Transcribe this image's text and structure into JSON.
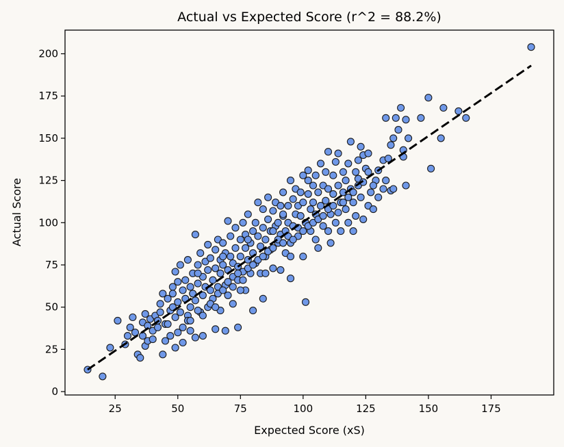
{
  "chart_data": {
    "type": "scatter",
    "title": "Actual vs Expected Score (r^2 = 88.2%)",
    "xlabel": "Expected Score (xS)",
    "ylabel": "Actual Score",
    "xlim": [
      5,
      200
    ],
    "ylim": [
      -2,
      214
    ],
    "xticks": [
      25,
      50,
      75,
      100,
      125,
      150,
      175
    ],
    "yticks": [
      0,
      25,
      50,
      75,
      100,
      125,
      150,
      175,
      200
    ],
    "grid": false,
    "legend": "none",
    "marker_color": "#6f98e8",
    "marker_edge_color": "#1a1a1a",
    "fit_line": {
      "style": "dashed",
      "color": "#000000",
      "x": [
        14,
        191
      ],
      "y": [
        13,
        193
      ]
    },
    "points": [
      [
        14,
        13
      ],
      [
        20,
        9
      ],
      [
        23,
        26
      ],
      [
        26,
        42
      ],
      [
        29,
        28
      ],
      [
        30,
        33
      ],
      [
        31,
        38
      ],
      [
        32,
        44
      ],
      [
        33,
        35
      ],
      [
        34,
        22
      ],
      [
        35,
        20
      ],
      [
        36,
        41
      ],
      [
        36,
        33
      ],
      [
        37,
        46
      ],
      [
        37,
        27
      ],
      [
        38,
        30
      ],
      [
        38,
        39
      ],
      [
        39,
        43
      ],
      [
        40,
        36
      ],
      [
        40,
        31
      ],
      [
        41,
        45
      ],
      [
        42,
        38
      ],
      [
        42,
        42
      ],
      [
        43,
        47
      ],
      [
        43,
        52
      ],
      [
        44,
        22
      ],
      [
        44,
        58
      ],
      [
        45,
        30
      ],
      [
        45,
        40
      ],
      [
        46,
        55
      ],
      [
        47,
        48
      ],
      [
        47,
        33
      ],
      [
        48,
        50
      ],
      [
        48,
        62
      ],
      [
        49,
        44
      ],
      [
        49,
        71
      ],
      [
        49,
        26
      ],
      [
        50,
        53
      ],
      [
        50,
        65
      ],
      [
        51,
        75
      ],
      [
        51,
        47
      ],
      [
        52,
        38
      ],
      [
        52,
        60
      ],
      [
        52,
        29
      ],
      [
        53,
        55
      ],
      [
        53,
        66
      ],
      [
        54,
        78
      ],
      [
        54,
        45
      ],
      [
        55,
        62
      ],
      [
        55,
        50
      ],
      [
        55,
        36
      ],
      [
        56,
        70
      ],
      [
        56,
        58
      ],
      [
        57,
        93
      ],
      [
        57,
        32
      ],
      [
        57,
        54
      ],
      [
        58,
        75
      ],
      [
        58,
        64
      ],
      [
        59,
        47
      ],
      [
        59,
        82
      ],
      [
        60,
        57
      ],
      [
        60,
        68
      ],
      [
        60,
        33
      ],
      [
        61,
        77
      ],
      [
        61,
        62
      ],
      [
        62,
        50
      ],
      [
        62,
        87
      ],
      [
        62,
        72
      ],
      [
        63,
        60
      ],
      [
        63,
        79
      ],
      [
        64,
        66
      ],
      [
        64,
        55
      ],
      [
        65,
        84
      ],
      [
        65,
        73
      ],
      [
        65,
        37
      ],
      [
        66,
        90
      ],
      [
        66,
        62
      ],
      [
        67,
        70
      ],
      [
        67,
        78
      ],
      [
        67,
        48
      ],
      [
        68,
        75
      ],
      [
        68,
        88
      ],
      [
        69,
        63
      ],
      [
        69,
        82
      ],
      [
        69,
        36
      ],
      [
        70,
        101
      ],
      [
        70,
        72
      ],
      [
        70,
        57
      ],
      [
        71,
        80
      ],
      [
        71,
        92
      ],
      [
        72,
        68
      ],
      [
        72,
        76
      ],
      [
        72,
        52
      ],
      [
        73,
        85
      ],
      [
        73,
        97
      ],
      [
        74,
        74
      ],
      [
        74,
        66
      ],
      [
        74,
        38
      ],
      [
        75,
        90
      ],
      [
        75,
        80
      ],
      [
        76,
        100
      ],
      [
        76,
        71
      ],
      [
        77,
        85
      ],
      [
        77,
        60
      ],
      [
        77,
        93
      ],
      [
        78,
        78
      ],
      [
        78,
        105
      ],
      [
        79,
        88
      ],
      [
        79,
        70
      ],
      [
        80,
        95
      ],
      [
        80,
        82
      ],
      [
        80,
        48
      ],
      [
        81,
        100
      ],
      [
        81,
        76
      ],
      [
        82,
        92
      ],
      [
        82,
        112
      ],
      [
        83,
        86
      ],
      [
        83,
        70
      ],
      [
        84,
        97
      ],
      [
        84,
        108
      ],
      [
        84,
        55
      ],
      [
        85,
        90
      ],
      [
        85,
        80
      ],
      [
        86,
        102
      ],
      [
        86,
        115
      ],
      [
        87,
        95
      ],
      [
        87,
        84
      ],
      [
        88,
        107
      ],
      [
        88,
        73
      ],
      [
        89,
        98
      ],
      [
        89,
        112
      ],
      [
        90,
        88
      ],
      [
        90,
        100
      ],
      [
        91,
        110
      ],
      [
        91,
        93
      ],
      [
        91,
        72
      ],
      [
        92,
        104
      ],
      [
        92,
        118
      ],
      [
        93,
        95
      ],
      [
        93,
        82
      ],
      [
        94,
        110
      ],
      [
        94,
        100
      ],
      [
        95,
        125
      ],
      [
        95,
        88
      ],
      [
        95,
        67
      ],
      [
        96,
        114
      ],
      [
        96,
        98
      ],
      [
        97,
        105
      ],
      [
        97,
        120
      ],
      [
        98,
        110
      ],
      [
        98,
        92
      ],
      [
        99,
        118
      ],
      [
        99,
        104
      ],
      [
        100,
        112
      ],
      [
        100,
        128
      ],
      [
        100,
        80
      ],
      [
        101,
        100
      ],
      [
        101,
        53
      ],
      [
        102,
        117
      ],
      [
        102,
        131
      ],
      [
        103,
        108
      ],
      [
        103,
        95
      ],
      [
        104,
        122
      ],
      [
        104,
        112
      ],
      [
        105,
        105
      ],
      [
        105,
        128
      ],
      [
        106,
        118
      ],
      [
        106,
        85
      ],
      [
        107,
        135
      ],
      [
        107,
        110
      ],
      [
        108,
        122
      ],
      [
        108,
        98
      ],
      [
        109,
        113
      ],
      [
        109,
        130
      ],
      [
        110,
        120
      ],
      [
        110,
        142
      ],
      [
        111,
        105
      ],
      [
        111,
        88
      ],
      [
        112,
        128
      ],
      [
        112,
        117
      ],
      [
        113,
        136
      ],
      [
        113,
        100
      ],
      [
        114,
        141
      ],
      [
        114,
        122
      ],
      [
        115,
        112
      ],
      [
        115,
        95
      ],
      [
        116,
        130
      ],
      [
        116,
        118
      ],
      [
        117,
        108
      ],
      [
        117,
        125
      ],
      [
        118,
        135
      ],
      [
        118,
        100
      ],
      [
        119,
        148
      ],
      [
        119,
        120
      ],
      [
        120,
        112
      ],
      [
        120,
        95
      ],
      [
        121,
        130
      ],
      [
        121,
        104
      ],
      [
        122,
        122
      ],
      [
        122,
        137
      ],
      [
        123,
        145
      ],
      [
        123,
        115
      ],
      [
        124,
        140
      ],
      [
        124,
        102
      ],
      [
        125,
        132
      ],
      [
        126,
        110
      ],
      [
        126,
        141
      ],
      [
        127,
        118
      ],
      [
        128,
        108
      ],
      [
        129,
        125
      ],
      [
        130,
        115
      ],
      [
        132,
        137
      ],
      [
        133,
        162
      ],
      [
        133,
        125
      ],
      [
        134,
        138
      ],
      [
        135,
        146
      ],
      [
        135,
        119
      ],
      [
        136,
        150
      ],
      [
        136,
        120
      ],
      [
        137,
        162
      ],
      [
        138,
        155
      ],
      [
        139,
        168
      ],
      [
        140,
        139
      ],
      [
        140,
        143
      ],
      [
        141,
        161
      ],
      [
        141,
        122
      ],
      [
        142,
        150
      ],
      [
        147,
        162
      ],
      [
        150,
        174
      ],
      [
        151,
        132
      ],
      [
        155,
        150
      ],
      [
        156,
        168
      ],
      [
        162,
        166
      ],
      [
        165,
        162
      ],
      [
        191,
        204
      ],
      [
        46,
        40
      ],
      [
        50,
        35
      ],
      [
        54,
        42
      ],
      [
        58,
        48
      ],
      [
        60,
        45
      ],
      [
        63,
        52
      ],
      [
        66,
        58
      ],
      [
        68,
        60
      ],
      [
        70,
        65
      ],
      [
        72,
        62
      ],
      [
        74,
        70
      ],
      [
        76,
        66
      ],
      [
        78,
        73
      ],
      [
        80,
        75
      ],
      [
        82,
        78
      ],
      [
        84,
        80
      ],
      [
        86,
        83
      ],
      [
        88,
        85
      ],
      [
        90,
        90
      ],
      [
        92,
        88
      ],
      [
        94,
        92
      ],
      [
        96,
        90
      ],
      [
        98,
        97
      ],
      [
        100,
        95
      ],
      [
        102,
        98
      ],
      [
        104,
        100
      ],
      [
        106,
        102
      ],
      [
        108,
        104
      ],
      [
        110,
        108
      ],
      [
        112,
        110
      ],
      [
        114,
        106
      ],
      [
        116,
        112
      ],
      [
        118,
        115
      ],
      [
        120,
        118
      ],
      [
        122,
        126
      ],
      [
        124,
        124
      ],
      [
        126,
        130
      ],
      [
        128,
        122
      ],
      [
        130,
        131
      ],
      [
        132,
        120
      ],
      [
        110,
        95
      ],
      [
        105,
        90
      ],
      [
        95,
        80
      ],
      [
        85,
        70
      ],
      [
        75,
        60
      ],
      [
        65,
        50
      ],
      [
        55,
        42
      ],
      [
        88,
        95
      ],
      [
        92,
        105
      ],
      [
        102,
        125
      ],
      [
        78,
        90
      ],
      [
        68,
        80
      ],
      [
        58,
        70
      ],
      [
        48,
        58
      ]
    ]
  }
}
